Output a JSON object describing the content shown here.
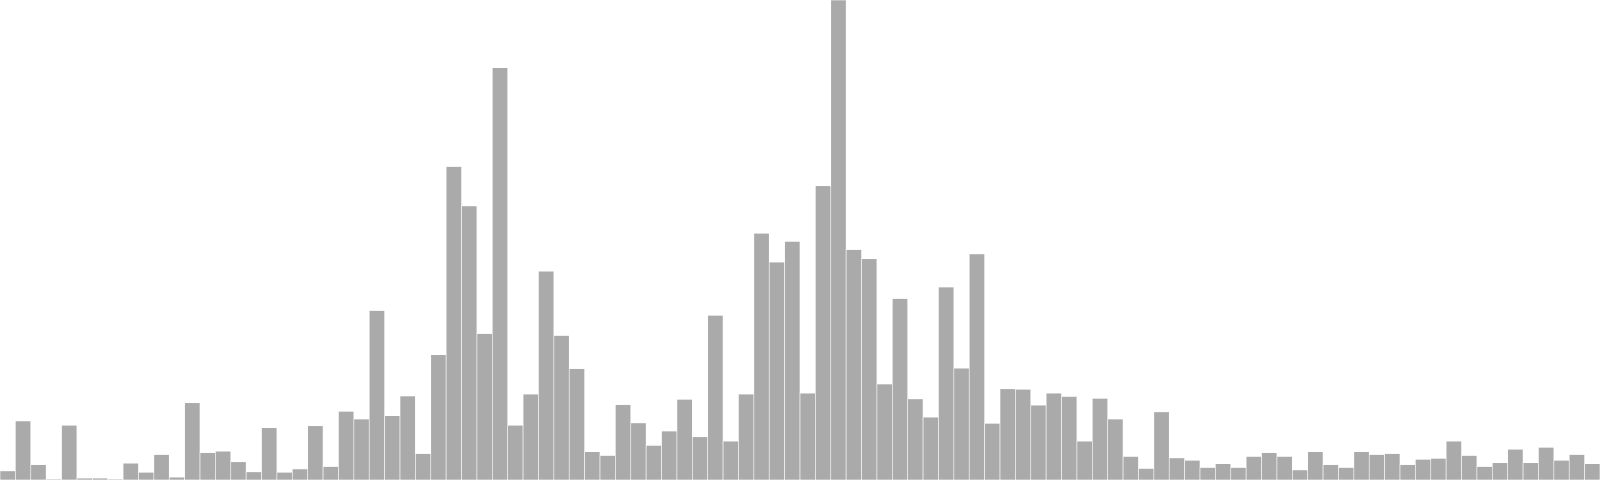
{
  "chart_data": {
    "type": "bar",
    "title": "",
    "xlabel": "",
    "ylabel": "",
    "bar_color": "#aaaaaa",
    "bar_edge_color": "#ffffff",
    "background_color": "#ffffff",
    "grid": false,
    "axes_visible": false,
    "ylim": [
      0,
      100
    ],
    "values": [
      1.9,
      12.3,
      3.2,
      0.0,
      11.4,
      0.4,
      0.4,
      0.2,
      3.5,
      1.6,
      5.3,
      0.6,
      16.1,
      5.7,
      6.0,
      3.8,
      1.7,
      10.9,
      1.6,
      2.3,
      11.3,
      2.8,
      14.3,
      12.7,
      35.3,
      13.4,
      17.5,
      5.5,
      26.1,
      65.3,
      57.1,
      30.5,
      85.9,
      11.4,
      17.9,
      43.5,
      30.1,
      23.2,
      5.9,
      5.1,
      15.7,
      11.9,
      7.2,
      10.2,
      16.8,
      9.0,
      34.3,
      8.1,
      17.9,
      51.4,
      45.4,
      49.7,
      18.1,
      61.3,
      100.0,
      48.0,
      46.1,
      20.0,
      37.8,
      16.9,
      13.1,
      40.2,
      23.3,
      47.1,
      11.8,
      19.0,
      18.9,
      15.6,
      18.1,
      17.4,
      8.1,
      17.0,
      12.7,
      4.9,
      2.4,
      14.2,
      4.6,
      4.1,
      2.6,
      3.4,
      2.6,
      4.9,
      5.7,
      4.9,
      2.1,
      5.9,
      3.2,
      2.6,
      5.9,
      5.3,
      5.5,
      3.2,
      4.3,
      4.5,
      8.1,
      5.1,
      2.8,
      3.6,
      6.4,
      3.6,
      6.8,
      4.1,
      5.3,
      3.4
    ]
  }
}
